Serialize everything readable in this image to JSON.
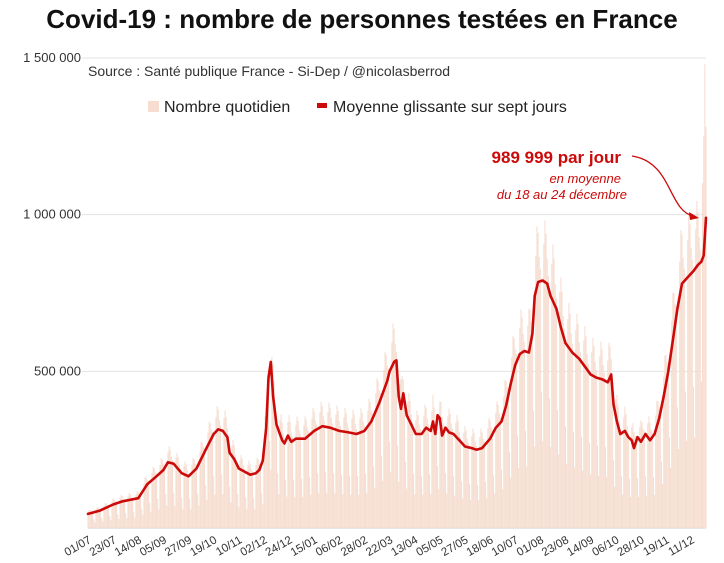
{
  "chart_data": {
    "type": "bar+line",
    "title": "Covid-19 : nombre de personnes testées en France",
    "source": "Source : Santé publique France - Si-Dep / @nicolasberrod",
    "ylim": [
      0,
      1500000
    ],
    "y_ticks": [
      {
        "value": 500000,
        "label": "500 000"
      },
      {
        "value": 1000000,
        "label": "1 000 000"
      },
      {
        "value": 1500000,
        "label": "1 500 000"
      }
    ],
    "x_tick_labels": [
      "01/07",
      "23/07",
      "14/08",
      "05/09",
      "27/09",
      "19/10",
      "10/11",
      "02/12",
      "24/12",
      "15/01",
      "06/02",
      "28/02",
      "22/03",
      "13/04",
      "05/05",
      "27/05",
      "18/06",
      "10/07",
      "01/08",
      "23/08",
      "14/09",
      "06/10",
      "28/10",
      "19/11",
      "11/12"
    ],
    "x_tick_days": [
      0,
      22,
      44,
      66,
      88,
      110,
      132,
      154,
      176,
      198,
      220,
      242,
      264,
      286,
      308,
      330,
      352,
      374,
      396,
      418,
      440,
      462,
      484,
      506,
      528
    ],
    "n_days": 542,
    "legend": [
      {
        "label": "Nombre quotidien",
        "color": "#f6ddd0"
      },
      {
        "label": "Moyenne glissante sur sept jours",
        "color": "#cc0a0a"
      }
    ],
    "series": [
      {
        "name": "Moyenne glissante sur sept jours",
        "points": [
          [
            0,
            45000
          ],
          [
            10,
            55000
          ],
          [
            22,
            75000
          ],
          [
            30,
            85000
          ],
          [
            44,
            95000
          ],
          [
            52,
            140000
          ],
          [
            60,
            165000
          ],
          [
            66,
            185000
          ],
          [
            70,
            210000
          ],
          [
            75,
            205000
          ],
          [
            82,
            175000
          ],
          [
            88,
            165000
          ],
          [
            95,
            190000
          ],
          [
            103,
            250000
          ],
          [
            110,
            300000
          ],
          [
            114,
            315000
          ],
          [
            118,
            310000
          ],
          [
            122,
            290000
          ],
          [
            124,
            240000
          ],
          [
            128,
            220000
          ],
          [
            132,
            190000
          ],
          [
            137,
            180000
          ],
          [
            142,
            170000
          ],
          [
            147,
            175000
          ],
          [
            150,
            185000
          ],
          [
            153,
            215000
          ],
          [
            156,
            320000
          ],
          [
            158,
            480000
          ],
          [
            160,
            530000
          ],
          [
            162,
            420000
          ],
          [
            165,
            330000
          ],
          [
            168,
            300000
          ],
          [
            170,
            280000
          ],
          [
            172,
            270000
          ],
          [
            175,
            295000
          ],
          [
            178,
            275000
          ],
          [
            182,
            285000
          ],
          [
            190,
            285000
          ],
          [
            198,
            310000
          ],
          [
            205,
            325000
          ],
          [
            212,
            320000
          ],
          [
            220,
            310000
          ],
          [
            228,
            305000
          ],
          [
            235,
            300000
          ],
          [
            242,
            310000
          ],
          [
            248,
            340000
          ],
          [
            255,
            400000
          ],
          [
            262,
            470000
          ],
          [
            264,
            500000
          ],
          [
            268,
            530000
          ],
          [
            270,
            535000
          ],
          [
            272,
            420000
          ],
          [
            274,
            380000
          ],
          [
            276,
            430000
          ],
          [
            279,
            360000
          ],
          [
            283,
            330000
          ],
          [
            287,
            300000
          ],
          [
            292,
            300000
          ],
          [
            296,
            320000
          ],
          [
            300,
            310000
          ],
          [
            302,
            340000
          ],
          [
            304,
            300000
          ],
          [
            306,
            360000
          ],
          [
            308,
            350000
          ],
          [
            310,
            295000
          ],
          [
            313,
            320000
          ],
          [
            316,
            305000
          ],
          [
            320,
            300000
          ],
          [
            325,
            280000
          ],
          [
            330,
            260000
          ],
          [
            336,
            255000
          ],
          [
            340,
            250000
          ],
          [
            345,
            255000
          ],
          [
            352,
            285000
          ],
          [
            357,
            320000
          ],
          [
            362,
            340000
          ],
          [
            366,
            390000
          ],
          [
            370,
            460000
          ],
          [
            374,
            520000
          ],
          [
            378,
            555000
          ],
          [
            382,
            565000
          ],
          [
            386,
            560000
          ],
          [
            389,
            620000
          ],
          [
            391,
            740000
          ],
          [
            394,
            785000
          ],
          [
            398,
            790000
          ],
          [
            402,
            780000
          ],
          [
            405,
            740000
          ],
          [
            410,
            700000
          ],
          [
            414,
            640000
          ],
          [
            418,
            590000
          ],
          [
            424,
            560000
          ],
          [
            430,
            540000
          ],
          [
            436,
            510000
          ],
          [
            440,
            490000
          ],
          [
            445,
            480000
          ],
          [
            450,
            475000
          ],
          [
            455,
            465000
          ],
          [
            458,
            490000
          ],
          [
            460,
            395000
          ],
          [
            463,
            340000
          ],
          [
            466,
            300000
          ],
          [
            470,
            310000
          ],
          [
            473,
            290000
          ],
          [
            476,
            280000
          ],
          [
            478,
            255000
          ],
          [
            481,
            290000
          ],
          [
            484,
            275000
          ],
          [
            488,
            300000
          ],
          [
            492,
            280000
          ],
          [
            496,
            300000
          ],
          [
            500,
            350000
          ],
          [
            504,
            420000
          ],
          [
            508,
            500000
          ],
          [
            512,
            600000
          ],
          [
            516,
            700000
          ],
          [
            520,
            780000
          ],
          [
            525,
            800000
          ],
          [
            530,
            820000
          ],
          [
            534,
            840000
          ],
          [
            537,
            850000
          ],
          [
            539,
            870000
          ],
          [
            541,
            990000
          ]
        ]
      }
    ],
    "annotations": [
      {
        "text": "989 999 par jour",
        "style": "bold",
        "color": "#cc0a0a"
      },
      {
        "text": "en moyenne",
        "style": "italic",
        "color": "#cc0a0a"
      },
      {
        "text": "du 18 au 24 décembre",
        "style": "italic",
        "color": "#cc0a0a"
      }
    ],
    "bar_color": "#f6ddd0",
    "line_color": "#cc0a0a",
    "grid_color": "#e3e3e3"
  }
}
